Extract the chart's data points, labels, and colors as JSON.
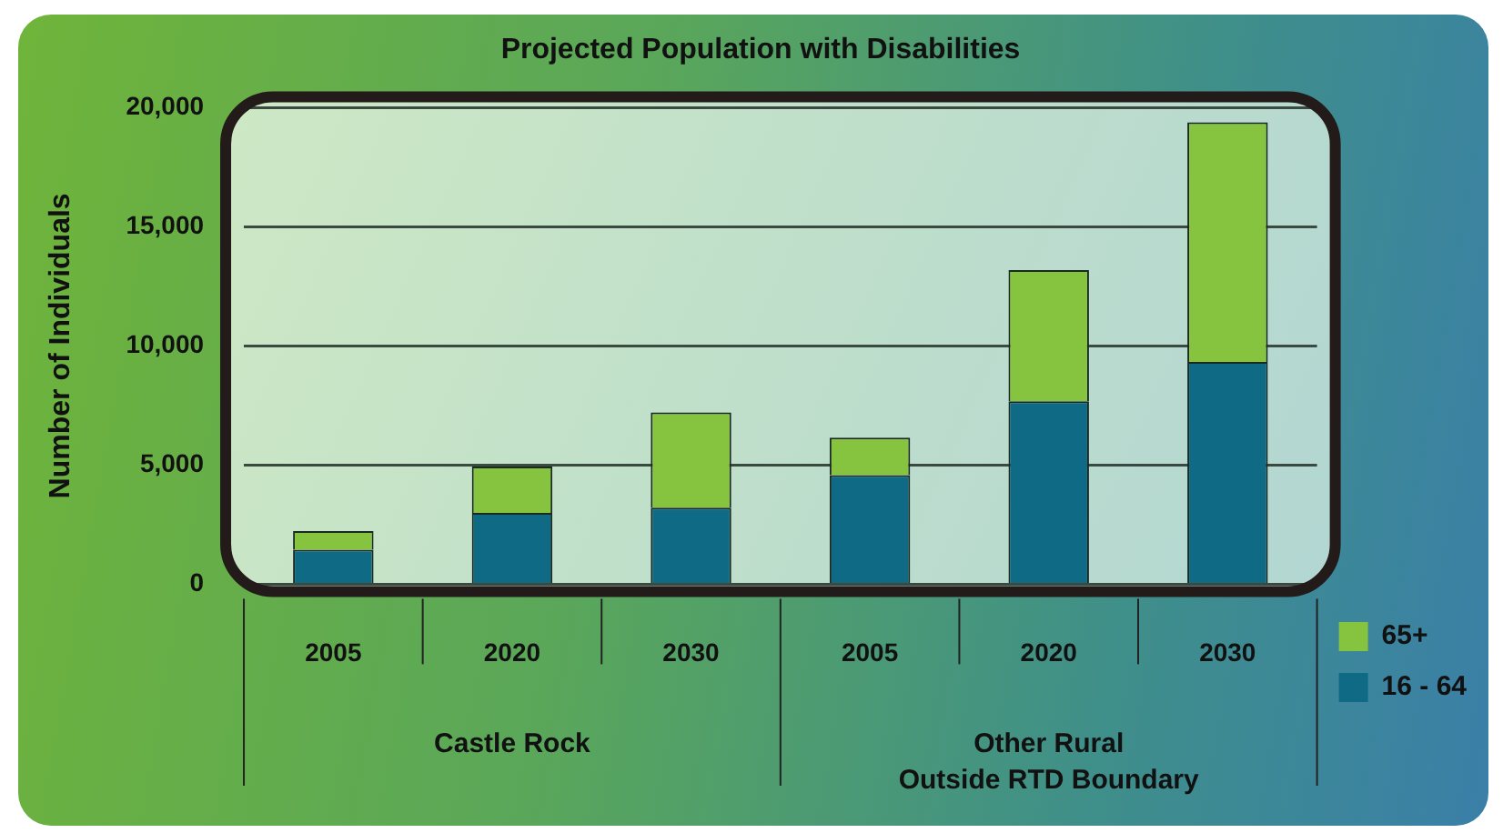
{
  "chart_data": {
    "type": "bar",
    "title": "Projected Population with Disabilities",
    "ylabel": "Number of Individuals",
    "categories": [
      "2005",
      "2020",
      "2030",
      "2005",
      "2020",
      "2030"
    ],
    "series": [
      {
        "name": "16 - 64",
        "color": "#0f6a86",
        "values": [
          1450,
          2990,
          3210,
          4580,
          7680,
          9330
        ]
      },
      {
        "name": "65+",
        "color": "#86c440",
        "values": [
          780,
          1950,
          4000,
          1570,
          5500,
          10060
        ]
      }
    ],
    "stacked": true,
    "ylim": [
      0,
      20000
    ],
    "yticks": [
      0,
      {
        "value": 5000,
        "label": "5,000"
      },
      {
        "value": 10000,
        "label": "10,000"
      },
      {
        "value": 15000,
        "label": "15,000"
      },
      {
        "value": 20000,
        "label": "20,000"
      }
    ],
    "grid": "y",
    "legend": "bottom right",
    "annotations": [
      "Castle Rock",
      "Other Rural\nOutside RTD Boundary"
    ]
  }
}
